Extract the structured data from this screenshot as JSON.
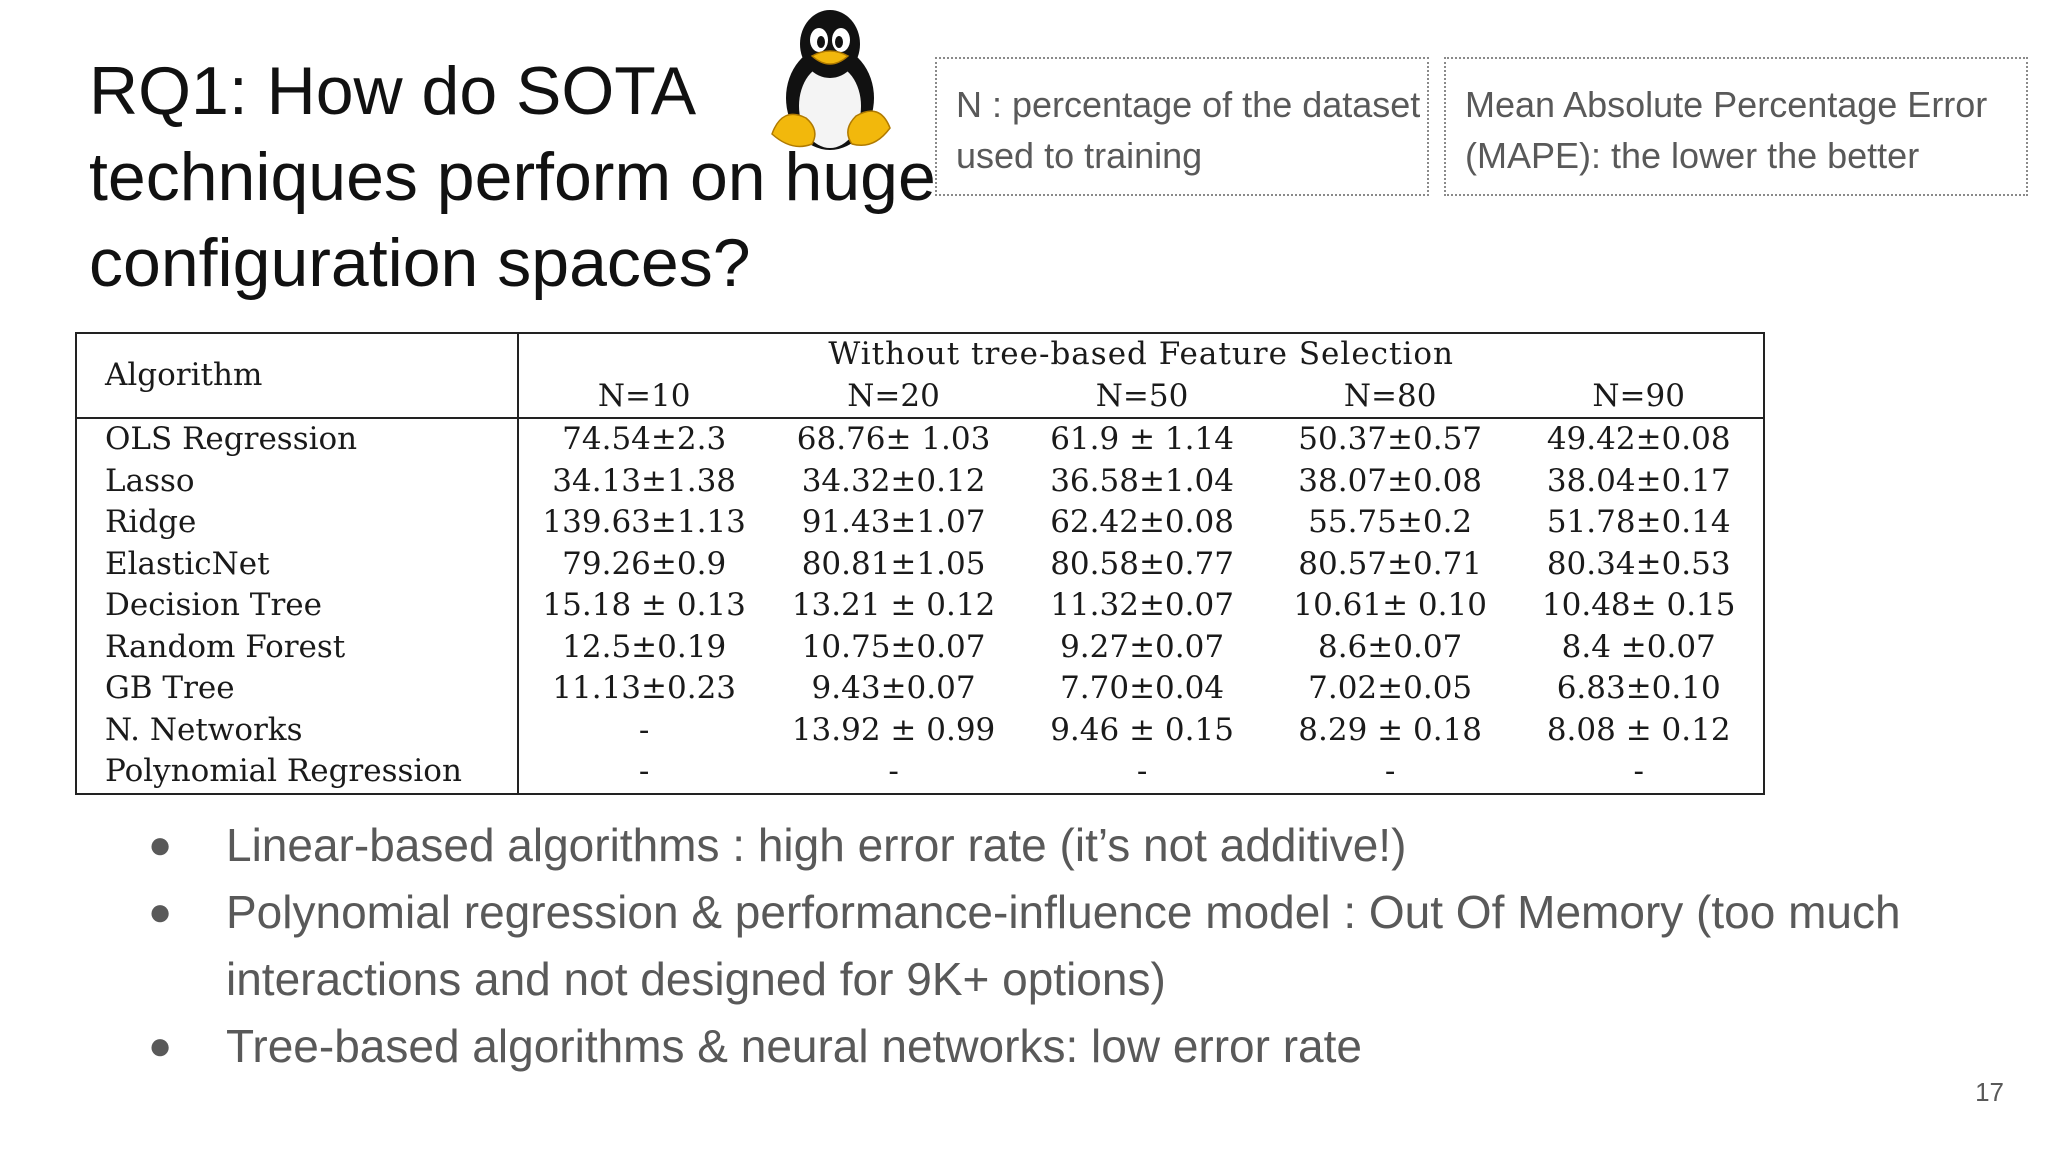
{
  "slide": {
    "title": "RQ1: How do SOTA techniques perform on huge configuration spaces?",
    "notes": [
      "N : percentage of the dataset used to training",
      "Mean Absolute Percentage Error (MAPE): the lower the better"
    ],
    "table": {
      "algorithm_header": "Algorithm",
      "group_header": "Without tree-based Feature Selection",
      "columns": [
        "N=10",
        "N=20",
        "N=50",
        "N=80",
        "N=90"
      ],
      "rows": [
        {
          "algorithm": "OLS Regression",
          "values": [
            "74.54±2.3",
            "68.76± 1.03",
            "61.9 ± 1.14",
            "50.37±0.57",
            "49.42±0.08"
          ]
        },
        {
          "algorithm": "Lasso",
          "values": [
            "34.13±1.38",
            "34.32±0.12",
            "36.58±1.04",
            "38.07±0.08",
            "38.04±0.17"
          ]
        },
        {
          "algorithm": "Ridge",
          "values": [
            "139.63±1.13",
            "91.43±1.07",
            "62.42±0.08",
            "55.75±0.2",
            "51.78±0.14"
          ]
        },
        {
          "algorithm": "ElasticNet",
          "values": [
            "79.26±0.9",
            "80.81±1.05",
            "80.58±0.77",
            "80.57±0.71",
            "80.34±0.53"
          ]
        },
        {
          "algorithm": "Decision Tree",
          "values": [
            "15.18 ± 0.13",
            "13.21 ± 0.12",
            "11.32±0.07",
            "10.61± 0.10",
            "10.48± 0.15"
          ]
        },
        {
          "algorithm": "Random Forest",
          "values": [
            "12.5±0.19",
            "10.75±0.07",
            "9.27±0.07",
            "8.6±0.07",
            "8.4 ±0.07"
          ]
        },
        {
          "algorithm": "GB Tree",
          "values": [
            "11.13±0.23",
            "9.43±0.07",
            "7.70±0.04",
            "7.02±0.05",
            "6.83±0.10"
          ]
        },
        {
          "algorithm": "N. Networks",
          "values": [
            "-",
            "13.92 ± 0.99",
            "9.46 ± 0.15",
            "8.29 ± 0.18",
            "8.08 ± 0.12"
          ]
        },
        {
          "algorithm": "Polynomial Regression",
          "values": [
            "-",
            "-",
            "-",
            "-",
            "-"
          ]
        }
      ]
    },
    "bullets": [
      "Linear-based algorithms  : high error rate (it’s not additive!)",
      "Polynomial regression & performance-influence model : Out Of Memory (too much interactions and not designed for 9K+ options)",
      "Tree-based algorithms & neural networks: low error rate"
    ],
    "bullet_symbol": "●",
    "page_number": "17",
    "logo_icon": "tux-penguin-icon"
  }
}
